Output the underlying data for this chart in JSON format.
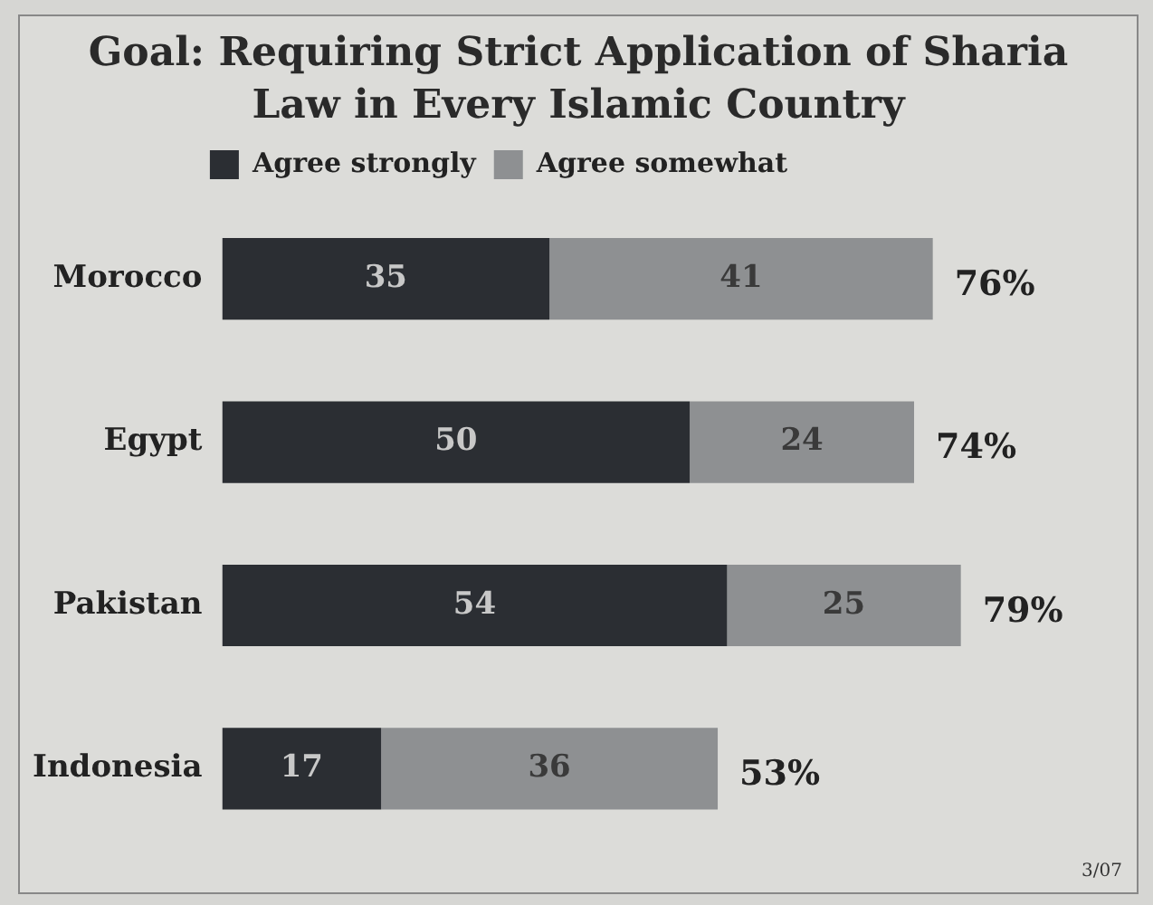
{
  "chart_data": {
    "type": "bar",
    "orientation": "horizontal",
    "stacked": true,
    "title": "Goal: Requiring Strict Application of Sharia Law in Every Islamic Country",
    "categories": [
      "Morocco",
      "Egypt",
      "Pakistan",
      "Indonesia"
    ],
    "series": [
      {
        "name": "Agree strongly",
        "color": "#2b2e33",
        "values": [
          35,
          50,
          54,
          17
        ]
      },
      {
        "name": "Agree somewhat",
        "color": "#8e9092",
        "values": [
          41,
          24,
          25,
          36
        ]
      }
    ],
    "data_labels": true,
    "totals": [
      "76%",
      "74%",
      "79%",
      "53%"
    ],
    "tick_labels": "y",
    "legend": "top",
    "annotations": [
      "3/07"
    ]
  }
}
